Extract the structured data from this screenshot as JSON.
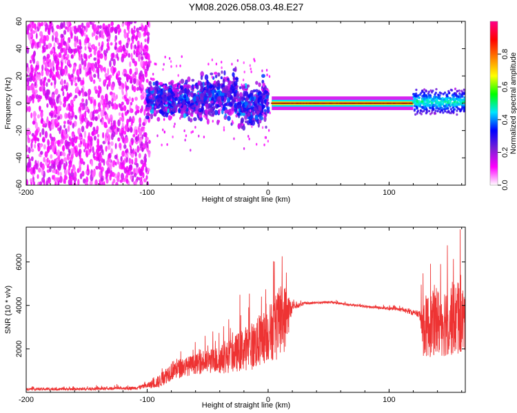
{
  "title": "YM08.2026.058.03.48.E27",
  "colorbar": {
    "label": "Normalized spectral amplitude",
    "ticks": [
      "0.0",
      "0.2",
      "0.4",
      "0.6",
      "0.8"
    ],
    "stops": [
      "#ffffff",
      "#ff00ff",
      "#7b1fd6",
      "#0000ff",
      "#00e5ff",
      "#00ff00",
      "#ffff00",
      "#ff8000",
      "#ff0000",
      "#ff0088"
    ]
  },
  "colors": {
    "line": "#ee3333",
    "axis": "#000000"
  },
  "chart_data": [
    {
      "type": "heatmap",
      "xlabel": "Height of straight line (km)",
      "ylabel": "Frequency (Hz)",
      "xlim": [
        -200,
        163
      ],
      "ylim": [
        -60,
        60
      ],
      "xticks": [
        "-200",
        "-100",
        "0",
        "100"
      ],
      "xtick_values": [
        -200,
        -100,
        0,
        100
      ],
      "yticks": [
        "60",
        "40",
        "20",
        "0",
        "-20",
        "-40",
        "-60"
      ],
      "ytick_values": [
        60,
        40,
        20,
        0,
        -20,
        -40,
        -60
      ],
      "regions": [
        {
          "x_range": [
            -200,
            -98
          ],
          "freq_center": 0,
          "freq_spread": 60,
          "amplitude": 0.08,
          "description": "scattered noise"
        },
        {
          "x_range": [
            -100,
            0
          ],
          "freq_center": 2,
          "freq_spread": 15,
          "amplitude": 0.3
        },
        {
          "x_range": [
            0,
            120
          ],
          "freq_center": 0,
          "freq_spread": 1,
          "amplitude": 0.95
        },
        {
          "x_range": [
            120,
            163
          ],
          "freq_center": 1,
          "freq_spread": 6,
          "amplitude": 0.45
        }
      ]
    },
    {
      "type": "line",
      "xlabel": "Height of straight line (km)",
      "ylabel": "SNR (10 * v/v)",
      "xlim": [
        -200,
        163
      ],
      "ylim": [
        0,
        7600
      ],
      "xticks": [
        "-200",
        "-100",
        "0",
        "100"
      ],
      "xtick_values": [
        -200,
        -100,
        0,
        100
      ],
      "yticks": [
        "2000",
        "4000",
        "6000"
      ],
      "ytick_values": [
        2000,
        4000,
        6000
      ],
      "envelope": {
        "x": [
          -200,
          -150,
          -110,
          -100,
          -90,
          -80,
          -60,
          -40,
          -30,
          -20,
          -10,
          0,
          10,
          15,
          20,
          30,
          50,
          80,
          110,
          125,
          128,
          140,
          150,
          163
        ],
        "base": [
          150,
          150,
          200,
          300,
          500,
          1000,
          1300,
          1500,
          1700,
          2000,
          2200,
          2700,
          3200,
          3500,
          3900,
          4100,
          4150,
          3950,
          3800,
          3600,
          3000,
          3200,
          3400,
          3300
        ],
        "amp": [
          120,
          120,
          150,
          250,
          600,
          900,
          900,
          1300,
          1600,
          2000,
          2300,
          2600,
          3400,
          3000,
          300,
          120,
          100,
          100,
          150,
          300,
          2800,
          3200,
          3500,
          3200
        ]
      }
    }
  ]
}
